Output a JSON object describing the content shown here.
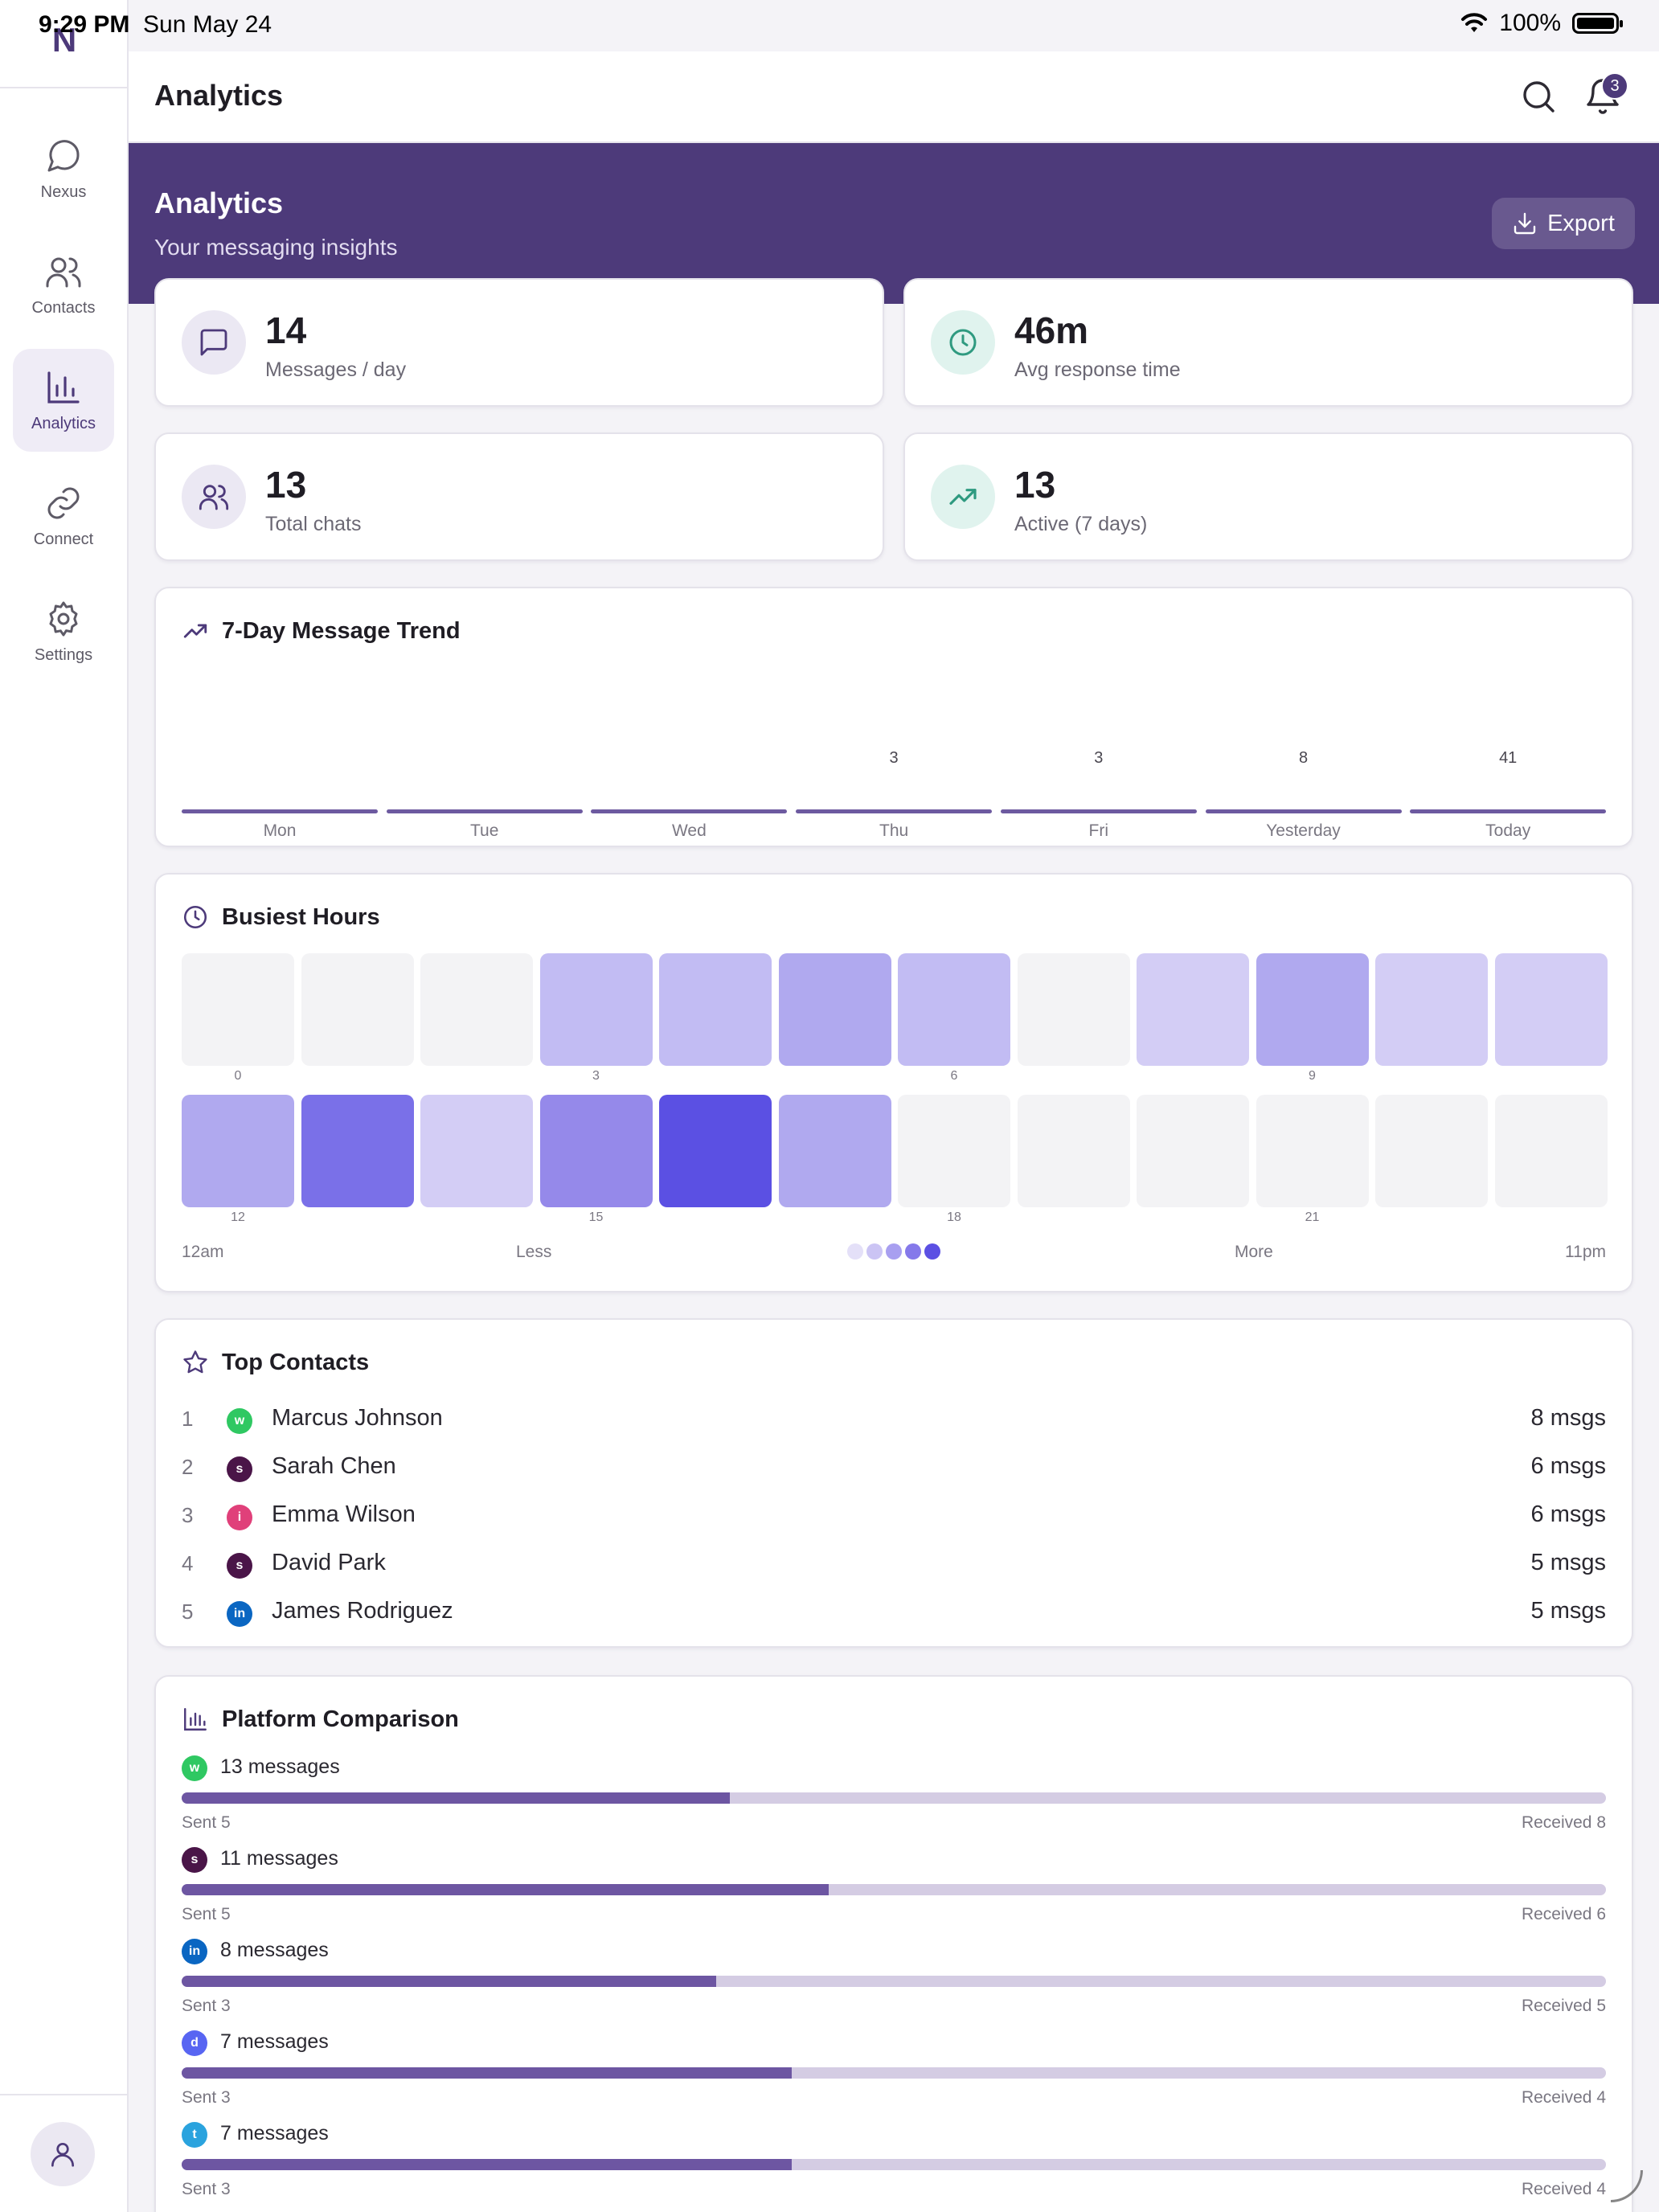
{
  "status_bar": {
    "time": "9:29 PM",
    "date": "Sun May 24",
    "battery": "100%"
  },
  "sidebar": {
    "logo": "N",
    "items": [
      {
        "label": "Nexus",
        "icon": "chat-bubble-icon",
        "active": false
      },
      {
        "label": "Contacts",
        "icon": "people-icon",
        "active": false
      },
      {
        "label": "Analytics",
        "icon": "bar-chart-icon",
        "active": true
      },
      {
        "label": "Connect",
        "icon": "link-icon",
        "active": false
      },
      {
        "label": "Settings",
        "icon": "gear-icon",
        "active": false
      }
    ],
    "profile_icon": "person-icon"
  },
  "header": {
    "title": "Analytics",
    "notification_count": "3"
  },
  "banner": {
    "title": "Analytics",
    "subtitle": "Your messaging insights",
    "export_label": "Export"
  },
  "stats": [
    {
      "value": "14",
      "label": "Messages / day",
      "icon": "message-square-icon",
      "color": "#4d3a7a"
    },
    {
      "value": "46m",
      "label": "Avg response time",
      "icon": "clock-icon",
      "color": "#2f9a80"
    },
    {
      "value": "13",
      "label": "Total chats",
      "icon": "people-icon",
      "color": "#4d3a7a"
    },
    {
      "value": "13",
      "label": "Active (7 days)",
      "icon": "trending-up-icon",
      "color": "#2f9a80"
    }
  ],
  "trend": {
    "title": "7-Day Message Trend",
    "days": [
      {
        "day": "Mon",
        "value": ""
      },
      {
        "day": "Tue",
        "value": ""
      },
      {
        "day": "Wed",
        "value": ""
      },
      {
        "day": "Thu",
        "value": "3"
      },
      {
        "day": "Fri",
        "value": "3"
      },
      {
        "day": "Yesterday",
        "value": "8"
      },
      {
        "day": "Today",
        "value": "41"
      }
    ]
  },
  "busiest_hours": {
    "title": "Busiest Hours",
    "levels": [
      0,
      0,
      0,
      2,
      2,
      3,
      2,
      0,
      1,
      3,
      1,
      1,
      3,
      5,
      1,
      4,
      6,
      3,
      0,
      0,
      0,
      0,
      0,
      0
    ],
    "level_colors": [
      "#f3f3f5",
      "#d3cdf5",
      "#c2bcf3",
      "#b0a9ef",
      "#9589ea",
      "#7a70e8",
      "#5b50e3"
    ],
    "tick_labels": [
      {
        "hour": 0,
        "label": "0"
      },
      {
        "hour": 3,
        "label": "3"
      },
      {
        "hour": 6,
        "label": "6"
      },
      {
        "hour": 9,
        "label": "9"
      },
      {
        "hour": 12,
        "label": "12"
      },
      {
        "hour": 15,
        "label": "15"
      },
      {
        "hour": 18,
        "label": "18"
      },
      {
        "hour": 21,
        "label": "21"
      }
    ],
    "start_label": "12am",
    "less_label": "Less",
    "more_label": "More",
    "end_label": "11pm",
    "legend_colors": [
      "#e4e0f8",
      "#cbc4f4",
      "#a89ff0",
      "#8579ea",
      "#5b50e3"
    ]
  },
  "top_contacts": {
    "title": "Top Contacts",
    "items": [
      {
        "rank": "1",
        "badge": "w",
        "badge_color": "#2fc862",
        "name": "Marcus Johnson",
        "count": "8 msgs"
      },
      {
        "rank": "2",
        "badge": "s",
        "badge_color": "#4a1548",
        "name": "Sarah Chen",
        "count": "6 msgs"
      },
      {
        "rank": "3",
        "badge": "i",
        "badge_color": "#e0407a",
        "name": "Emma Wilson",
        "count": "6 msgs"
      },
      {
        "rank": "4",
        "badge": "s",
        "badge_color": "#4a1548",
        "name": "David Park",
        "count": "5 msgs"
      },
      {
        "rank": "5",
        "badge": "in",
        "badge_color": "#0a66c2",
        "name": "James Rodriguez",
        "count": "5 msgs"
      }
    ]
  },
  "platforms": {
    "title": "Platform Comparison",
    "items": [
      {
        "badge": "w",
        "badge_color": "#2fc862",
        "total": "13 messages",
        "sent_label": "Sent 5",
        "received_label": "Received 8",
        "sent": 5,
        "received": 8
      },
      {
        "badge": "s",
        "badge_color": "#4a1548",
        "total": "11 messages",
        "sent_label": "Sent 5",
        "received_label": "Received 6",
        "sent": 5,
        "received": 6
      },
      {
        "badge": "in",
        "badge_color": "#0a66c2",
        "total": "8 messages",
        "sent_label": "Sent 3",
        "received_label": "Received 5",
        "sent": 3,
        "received": 5
      },
      {
        "badge": "d",
        "badge_color": "#5865f2",
        "total": "7 messages",
        "sent_label": "Sent 3",
        "received_label": "Received 4",
        "sent": 3,
        "received": 4
      },
      {
        "badge": "t",
        "badge_color": "#2aa3de",
        "total": "7 messages",
        "sent_label": "Sent 3",
        "received_label": "Received 4",
        "sent": 3,
        "received": 4
      }
    ]
  }
}
